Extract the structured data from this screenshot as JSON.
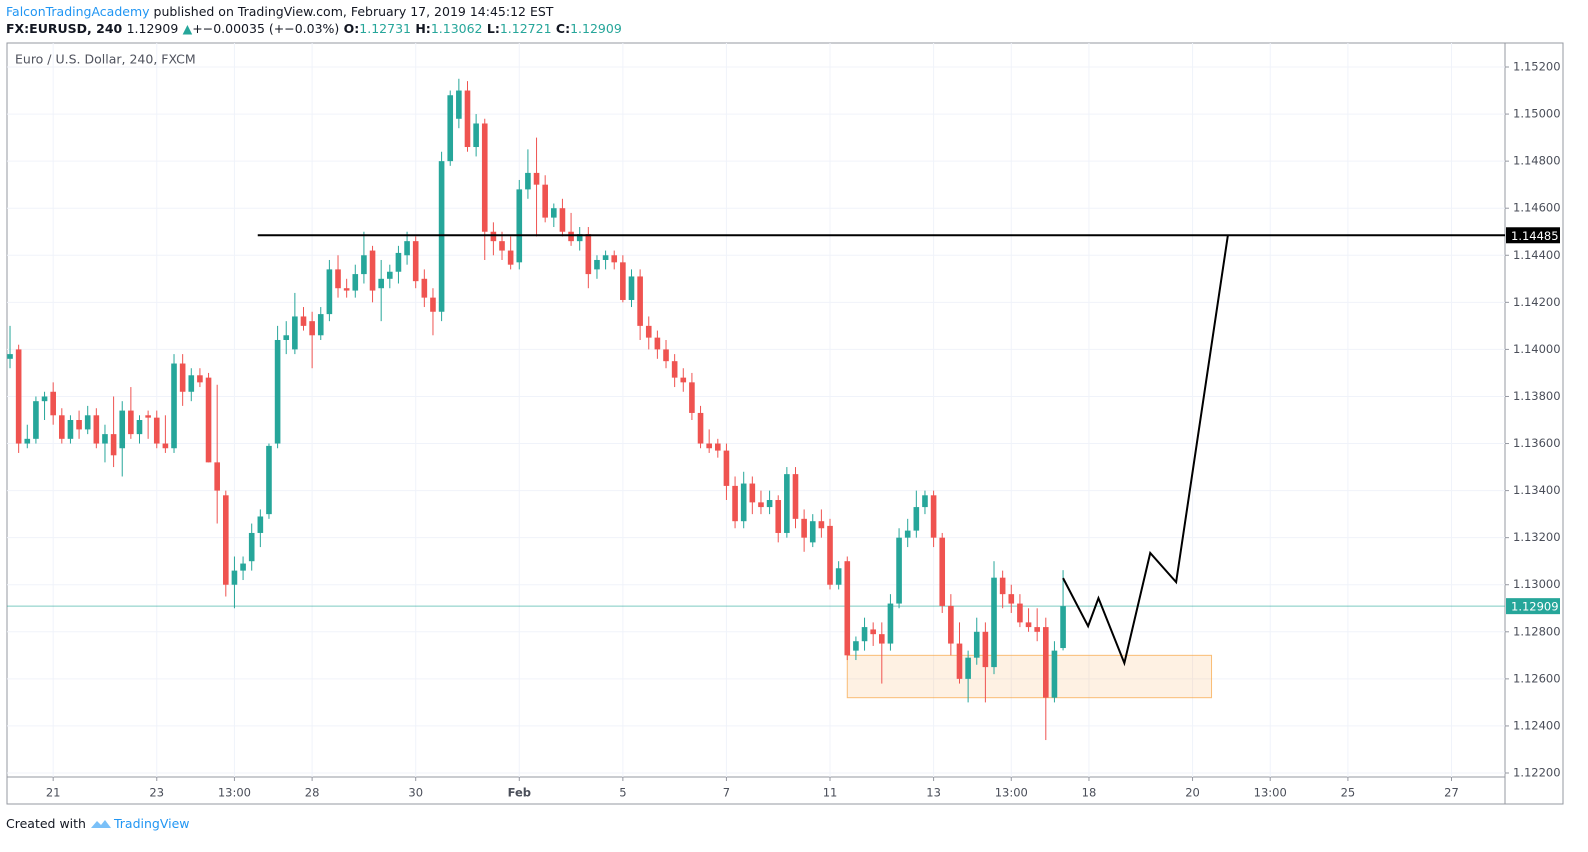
{
  "header": {
    "author": "FalconTradingAcademy",
    "published": " published on TradingView.com, February 17, 2019 14:45:12 EST",
    "symbol": "FX:EURUSD, 240",
    "price": "1.12909",
    "arrow": "▲",
    "change": "+−0.00035 (+−0.03%)",
    "o_label": "O:",
    "o": "1.12731",
    "h_label": "H:",
    "h": "1.13062",
    "l_label": "L:",
    "l": "1.12721",
    "c_label": "C:",
    "c": "1.12909"
  },
  "footer": {
    "created": "Created with",
    "brand": "TradingView"
  },
  "chart_data": {
    "type": "candlestick",
    "title": "Euro / U.S. Dollar, 240, FXCM",
    "up_color": "#26a69a",
    "down_color": "#ef5350",
    "grid": true,
    "xlim": [
      -0.35,
      173.2
    ],
    "ylim": [
      1.12183,
      1.15302
    ],
    "yticks": [
      {
        "value": 1.152,
        "label": "1.15200"
      },
      {
        "value": 1.15,
        "label": "1.15000"
      },
      {
        "value": 1.148,
        "label": "1.14800"
      },
      {
        "value": 1.146,
        "label": "1.14600"
      },
      {
        "value": 1.144,
        "label": "1.14400"
      },
      {
        "value": 1.142,
        "label": "1.14200"
      },
      {
        "value": 1.14,
        "label": "1.14000"
      },
      {
        "value": 1.138,
        "label": "1.13800"
      },
      {
        "value": 1.136,
        "label": "1.13600"
      },
      {
        "value": 1.134,
        "label": "1.13400"
      },
      {
        "value": 1.132,
        "label": "1.13200"
      },
      {
        "value": 1.13,
        "label": "1.13000"
      },
      {
        "value": 1.128,
        "label": "1.12800"
      },
      {
        "value": 1.126,
        "label": "1.12600"
      },
      {
        "value": 1.124,
        "label": "1.12400"
      },
      {
        "value": 1.122,
        "label": "1.12200"
      }
    ],
    "xticks": [
      {
        "value": 5,
        "label": "21"
      },
      {
        "value": 17,
        "label": "23"
      },
      {
        "value": 26,
        "label": "13:00"
      },
      {
        "value": 35,
        "label": "28"
      },
      {
        "value": 47,
        "label": "30"
      },
      {
        "value": 59,
        "label": "Feb"
      },
      {
        "value": 71,
        "label": "5"
      },
      {
        "value": 83,
        "label": "7"
      },
      {
        "value": 95,
        "label": "11"
      },
      {
        "value": 107,
        "label": "13"
      },
      {
        "value": 116,
        "label": "13:00"
      },
      {
        "value": 125,
        "label": "18"
      },
      {
        "value": 137,
        "label": "20"
      },
      {
        "value": 146,
        "label": "13:00"
      },
      {
        "value": 155,
        "label": "25"
      },
      {
        "value": 167,
        "label": "27"
      }
    ],
    "ohlc": [
      [
        1.1396,
        1.141,
        1.1392,
        1.1398
      ],
      [
        1.14,
        1.1402,
        1.1356,
        1.136
      ],
      [
        1.136,
        1.1368,
        1.1358,
        1.1362
      ],
      [
        1.1362,
        1.138,
        1.136,
        1.1378
      ],
      [
        1.1378,
        1.1382,
        1.137,
        1.138
      ],
      [
        1.1382,
        1.1386,
        1.1368,
        1.1372
      ],
      [
        1.1372,
        1.1375,
        1.136,
        1.1362
      ],
      [
        1.1362,
        1.1372,
        1.136,
        1.137
      ],
      [
        1.137,
        1.1374,
        1.1362,
        1.1366
      ],
      [
        1.1366,
        1.1376,
        1.1364,
        1.1372
      ],
      [
        1.1372,
        1.1375,
        1.1358,
        1.136
      ],
      [
        1.136,
        1.1368,
        1.1352,
        1.1364
      ],
      [
        1.1364,
        1.138,
        1.135,
        1.1355
      ],
      [
        1.1358,
        1.1378,
        1.1346,
        1.1374
      ],
      [
        1.1374,
        1.1384,
        1.1362,
        1.1364
      ],
      [
        1.1364,
        1.1372,
        1.136,
        1.137
      ],
      [
        1.1372,
        1.1374,
        1.1362,
        1.1371
      ],
      [
        1.1371,
        1.1374,
        1.1358,
        1.136
      ],
      [
        1.136,
        1.1372,
        1.1356,
        1.1358
      ],
      [
        1.1358,
        1.1398,
        1.1356,
        1.1394
      ],
      [
        1.1394,
        1.1398,
        1.1376,
        1.1382
      ],
      [
        1.1382,
        1.1392,
        1.1378,
        1.1389
      ],
      [
        1.1389,
        1.1392,
        1.1384,
        1.1386
      ],
      [
        1.1388,
        1.139,
        1.1352,
        1.1352
      ],
      [
        1.1352,
        1.1385,
        1.1326,
        1.134
      ],
      [
        1.1338,
        1.134,
        1.1295,
        1.13
      ],
      [
        1.13,
        1.1312,
        1.129,
        1.1306
      ],
      [
        1.1306,
        1.1312,
        1.1302,
        1.1309
      ],
      [
        1.131,
        1.1326,
        1.1306,
        1.1322
      ],
      [
        1.1322,
        1.1332,
        1.1316,
        1.1329
      ],
      [
        1.133,
        1.136,
        1.1328,
        1.1359
      ],
      [
        1.136,
        1.141,
        1.1358,
        1.1404
      ],
      [
        1.1404,
        1.1412,
        1.1398,
        1.1406
      ],
      [
        1.14,
        1.1424,
        1.1398,
        1.1414
      ],
      [
        1.1414,
        1.1418,
        1.1408,
        1.141
      ],
      [
        1.1412,
        1.1416,
        1.1392,
        1.1406
      ],
      [
        1.1406,
        1.1418,
        1.1404,
        1.1415
      ],
      [
        1.1415,
        1.1438,
        1.1412,
        1.1434
      ],
      [
        1.1434,
        1.144,
        1.1422,
        1.1426
      ],
      [
        1.1426,
        1.143,
        1.1422,
        1.1425
      ],
      [
        1.1425,
        1.1436,
        1.1422,
        1.1432
      ],
      [
        1.1432,
        1.145,
        1.1428,
        1.144
      ],
      [
        1.1442,
        1.1444,
        1.142,
        1.1425
      ],
      [
        1.1426,
        1.1438,
        1.1412,
        1.143
      ],
      [
        1.143,
        1.1436,
        1.1426,
        1.1433
      ],
      [
        1.1433,
        1.1444,
        1.1428,
        1.1441
      ],
      [
        1.144,
        1.145,
        1.1436,
        1.1446
      ],
      [
        1.1446,
        1.1448,
        1.1426,
        1.1429
      ],
      [
        1.143,
        1.1434,
        1.1418,
        1.1422
      ],
      [
        1.1422,
        1.1426,
        1.1406,
        1.1416
      ],
      [
        1.1416,
        1.1484,
        1.1412,
        1.148
      ],
      [
        1.148,
        1.151,
        1.1478,
        1.1508
      ],
      [
        1.1498,
        1.1515,
        1.1494,
        1.151
      ],
      [
        1.151,
        1.1514,
        1.1484,
        1.1486
      ],
      [
        1.1486,
        1.15,
        1.1482,
        1.1496
      ],
      [
        1.1496,
        1.1498,
        1.1438,
        1.145
      ],
      [
        1.145,
        1.1454,
        1.144,
        1.1446
      ],
      [
        1.1446,
        1.145,
        1.1438,
        1.1442
      ],
      [
        1.1442,
        1.1448,
        1.1434,
        1.1436
      ],
      [
        1.1437,
        1.1472,
        1.1434,
        1.1468
      ],
      [
        1.1468,
        1.1485,
        1.1464,
        1.1475
      ],
      [
        1.1475,
        1.149,
        1.1448,
        1.147
      ],
      [
        1.147,
        1.1474,
        1.1454,
        1.1456
      ],
      [
        1.1456,
        1.1462,
        1.1452,
        1.146
      ],
      [
        1.146,
        1.1464,
        1.1448,
        1.145
      ],
      [
        1.145,
        1.1458,
        1.1444,
        1.1446
      ],
      [
        1.1446,
        1.1452,
        1.1442,
        1.1449
      ],
      [
        1.1449,
        1.1452,
        1.1426,
        1.1432
      ],
      [
        1.1434,
        1.144,
        1.143,
        1.1438
      ],
      [
        1.1438,
        1.1442,
        1.1434,
        1.144
      ],
      [
        1.144,
        1.1442,
        1.1434,
        1.1437
      ],
      [
        1.1437,
        1.144,
        1.142,
        1.1421
      ],
      [
        1.1421,
        1.1434,
        1.1418,
        1.1431
      ],
      [
        1.1431,
        1.1434,
        1.1404,
        1.141
      ],
      [
        1.141,
        1.1414,
        1.14,
        1.1405
      ],
      [
        1.1405,
        1.1408,
        1.1396,
        1.14
      ],
      [
        1.14,
        1.1404,
        1.1392,
        1.1395
      ],
      [
        1.1395,
        1.1398,
        1.1384,
        1.1388
      ],
      [
        1.1388,
        1.1392,
        1.1382,
        1.1386
      ],
      [
        1.1386,
        1.139,
        1.137,
        1.1373
      ],
      [
        1.1373,
        1.1376,
        1.1358,
        1.136
      ],
      [
        1.136,
        1.1366,
        1.1356,
        1.1358
      ],
      [
        1.136,
        1.1362,
        1.1354,
        1.1357
      ],
      [
        1.1357,
        1.136,
        1.1336,
        1.1342
      ],
      [
        1.1342,
        1.1346,
        1.1324,
        1.1327
      ],
      [
        1.1327,
        1.1348,
        1.1324,
        1.1343
      ],
      [
        1.1343,
        1.1346,
        1.133,
        1.1335
      ],
      [
        1.1335,
        1.134,
        1.133,
        1.1333
      ],
      [
        1.1333,
        1.134,
        1.133,
        1.1336
      ],
      [
        1.1336,
        1.1338,
        1.1318,
        1.1322
      ],
      [
        1.1322,
        1.135,
        1.132,
        1.1347
      ],
      [
        1.1347,
        1.135,
        1.1324,
        1.1328
      ],
      [
        1.1328,
        1.1332,
        1.1314,
        1.132
      ],
      [
        1.1318,
        1.133,
        1.1316,
        1.1327
      ],
      [
        1.1327,
        1.1332,
        1.132,
        1.1324
      ],
      [
        1.1325,
        1.1328,
        1.1298,
        1.13
      ],
      [
        1.13,
        1.131,
        1.1298,
        1.1307
      ],
      [
        1.131,
        1.1312,
        1.1268,
        1.127
      ],
      [
        1.1272,
        1.1278,
        1.1268,
        1.1276
      ],
      [
        1.1276,
        1.1286,
        1.1272,
        1.1282
      ],
      [
        1.1281,
        1.1284,
        1.1274,
        1.1279
      ],
      [
        1.1279,
        1.1284,
        1.1258,
        1.1275
      ],
      [
        1.1275,
        1.1296,
        1.1272,
        1.1292
      ],
      [
        1.1292,
        1.1324,
        1.129,
        1.132
      ],
      [
        1.132,
        1.1328,
        1.1316,
        1.1323
      ],
      [
        1.1323,
        1.134,
        1.132,
        1.1333
      ],
      [
        1.1333,
        1.134,
        1.133,
        1.1338
      ],
      [
        1.1338,
        1.134,
        1.1316,
        1.132
      ],
      [
        1.132,
        1.1322,
        1.1288,
        1.1291
      ],
      [
        1.1291,
        1.1296,
        1.127,
        1.1275
      ],
      [
        1.1275,
        1.1284,
        1.1258,
        1.126
      ],
      [
        1.126,
        1.1272,
        1.125,
        1.1269
      ],
      [
        1.1269,
        1.1286,
        1.1266,
        1.128
      ],
      [
        1.128,
        1.1284,
        1.125,
        1.1265
      ],
      [
        1.1265,
        1.131,
        1.1262,
        1.1303
      ],
      [
        1.1303,
        1.1306,
        1.129,
        1.1296
      ],
      [
        1.1296,
        1.13,
        1.1288,
        1.1292
      ],
      [
        1.1292,
        1.1296,
        1.1282,
        1.1284
      ],
      [
        1.1284,
        1.129,
        1.128,
        1.1282
      ],
      [
        1.1282,
        1.129,
        1.1276,
        1.128
      ],
      [
        1.1282,
        1.1286,
        1.1234,
        1.1252
      ],
      [
        1.1252,
        1.1276,
        1.125,
        1.1272
      ],
      [
        1.12731,
        1.13062,
        1.12721,
        1.12909
      ]
    ],
    "resistance": {
      "value": 1.14485,
      "x_from": 28.7,
      "color": "#000000"
    },
    "last_price": {
      "value": 1.12909,
      "color": "#26a69a"
    },
    "zone": {
      "x": [
        97,
        139.2
      ],
      "y": [
        1.1252,
        1.127
      ],
      "color": "#f7a440"
    },
    "projection": {
      "x": [
        122,
        124.9,
        126.1,
        129.1,
        132.1,
        135.1,
        141.1
      ],
      "values": [
        1.13028,
        1.12824,
        1.12943,
        1.12667,
        1.13135,
        1.13011,
        1.14486
      ],
      "color": "#000000"
    }
  }
}
